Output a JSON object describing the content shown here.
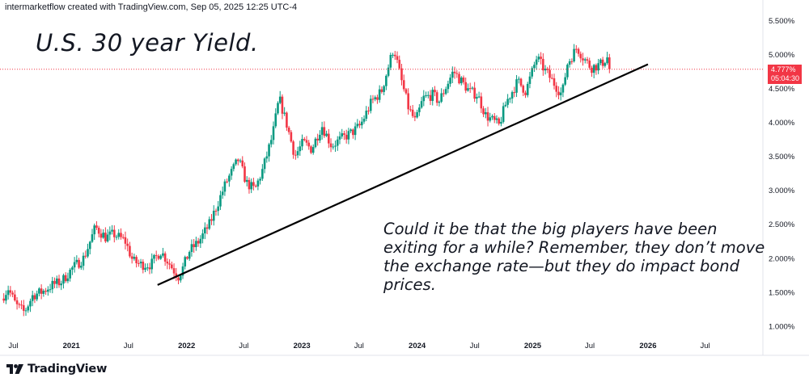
{
  "header": {
    "credit": "intermarketflow created with TradingView.com, Sep 05, 2025 12:25 UTC-4"
  },
  "title": "U.S. 30 year Yield.",
  "annotation": "Could it be that the big players have been exiting for a while? Remember, they don’t move the exchange rate—but they do impact bond prices.",
  "brand": {
    "name": "TradingView"
  },
  "last_price": {
    "value": "4.777%",
    "countdown": "05:04:30"
  },
  "colors": {
    "up": "#089981",
    "down": "#f23645",
    "price_line": "#f23645",
    "trendline": "#000000",
    "axis_text": "#131722"
  },
  "chart_data": {
    "type": "candlestick",
    "title": "U.S. 30 year Yield.",
    "xlabel": "",
    "ylabel": "",
    "ylim": [
      0.85,
      5.63
    ],
    "xlim": [
      "2020-05-20",
      "2026-12-31"
    ],
    "grid": false,
    "y_ticks": [
      "5.500%",
      "5.000%",
      "4.500%",
      "4.000%",
      "3.500%",
      "3.000%",
      "2.500%",
      "2.000%",
      "1.500%",
      "1.000%"
    ],
    "y_tick_values": [
      5.5,
      5.0,
      4.5,
      4.0,
      3.5,
      3.0,
      2.5,
      2.0,
      1.5,
      1.0
    ],
    "x_ticks": [
      "Jul",
      "2021",
      "Jul",
      "2022",
      "Jul",
      "2023",
      "Jul",
      "2024",
      "Jul",
      "2025",
      "Jul",
      "2026",
      "Jul"
    ],
    "x_tick_dates": [
      "2020-07-01",
      "2021-01-01",
      "2021-07-01",
      "2022-01-01",
      "2022-07-01",
      "2023-01-01",
      "2023-07-01",
      "2024-01-01",
      "2024-07-01",
      "2025-01-01",
      "2025-07-01",
      "2026-01-01",
      "2026-07-01"
    ],
    "last_value": 4.777,
    "trendline": {
      "start": [
        "2021-10-01",
        1.6
      ],
      "end": [
        "2026-01-01",
        4.85
      ]
    },
    "anchors": [
      [
        "2020-05-25",
        1.4
      ],
      [
        "2020-06-15",
        1.55
      ],
      [
        "2020-07-10",
        1.3
      ],
      [
        "2020-08-05",
        1.2
      ],
      [
        "2020-09-01",
        1.45
      ],
      [
        "2020-10-01",
        1.5
      ],
      [
        "2020-11-01",
        1.6
      ],
      [
        "2020-12-01",
        1.65
      ],
      [
        "2021-01-05",
        1.85
      ],
      [
        "2021-02-10",
        2.0
      ],
      [
        "2021-03-18",
        2.45
      ],
      [
        "2021-04-20",
        2.3
      ],
      [
        "2021-05-15",
        2.35
      ],
      [
        "2021-06-20",
        2.25
      ],
      [
        "2021-07-15",
        1.95
      ],
      [
        "2021-08-10",
        1.9
      ],
      [
        "2021-09-10",
        1.9
      ],
      [
        "2021-10-10",
        2.1
      ],
      [
        "2021-11-10",
        1.9
      ],
      [
        "2021-12-05",
        1.72
      ],
      [
        "2021-12-20",
        1.85
      ],
      [
        "2022-01-10",
        2.1
      ],
      [
        "2022-02-10",
        2.25
      ],
      [
        "2022-03-15",
        2.5
      ],
      [
        "2022-04-05",
        2.75
      ],
      [
        "2022-05-05",
        3.1
      ],
      [
        "2022-06-14",
        3.45
      ],
      [
        "2022-07-10",
        3.1
      ],
      [
        "2022-08-05",
        3.0
      ],
      [
        "2022-08-30",
        3.3
      ],
      [
        "2022-09-30",
        3.8
      ],
      [
        "2022-10-21",
        4.35
      ],
      [
        "2022-11-15",
        3.95
      ],
      [
        "2022-12-10",
        3.5
      ],
      [
        "2023-01-05",
        3.7
      ],
      [
        "2023-02-01",
        3.6
      ],
      [
        "2023-03-05",
        3.95
      ],
      [
        "2023-04-05",
        3.65
      ],
      [
        "2023-05-05",
        3.75
      ],
      [
        "2023-06-10",
        3.85
      ],
      [
        "2023-07-05",
        3.95
      ],
      [
        "2023-08-10",
        4.3
      ],
      [
        "2023-09-10",
        4.45
      ],
      [
        "2023-10-19",
        5.1
      ],
      [
        "2023-11-10",
        4.65
      ],
      [
        "2023-12-05",
        4.2
      ],
      [
        "2023-12-27",
        4.0
      ],
      [
        "2024-01-20",
        4.35
      ],
      [
        "2024-02-20",
        4.4
      ],
      [
        "2024-03-10",
        4.3
      ],
      [
        "2024-04-25",
        4.75
      ],
      [
        "2024-05-20",
        4.6
      ],
      [
        "2024-06-15",
        4.45
      ],
      [
        "2024-07-10",
        4.4
      ],
      [
        "2024-08-05",
        4.1
      ],
      [
        "2024-09-16",
        3.95
      ],
      [
        "2024-10-10",
        4.3
      ],
      [
        "2024-11-15",
        4.6
      ],
      [
        "2024-12-10",
        4.45
      ],
      [
        "2025-01-14",
        4.95
      ],
      [
        "2025-02-10",
        4.75
      ],
      [
        "2025-03-05",
        4.6
      ],
      [
        "2025-04-04",
        4.4
      ],
      [
        "2025-04-20",
        4.85
      ],
      [
        "2025-05-21",
        5.1
      ],
      [
        "2025-06-10",
        4.95
      ],
      [
        "2025-07-05",
        4.8
      ],
      [
        "2025-08-05",
        4.85
      ],
      [
        "2025-08-25",
        4.95
      ],
      [
        "2025-09-05",
        4.777
      ]
    ]
  }
}
